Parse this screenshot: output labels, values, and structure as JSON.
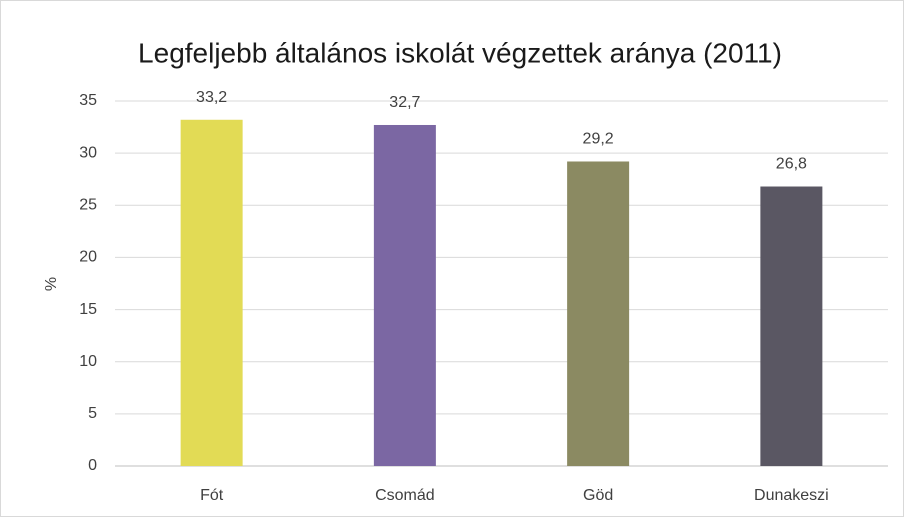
{
  "chart_data": {
    "type": "bar",
    "title": "Legfeljebb általános iskolát végzettek aránya (2011)",
    "y_label": "%",
    "categories": [
      "Fót",
      "Csomád",
      "Göd",
      "Dunakeszi"
    ],
    "values": [
      33.2,
      32.7,
      29.2,
      26.8
    ],
    "value_labels": [
      "33,2",
      "32,7",
      "29,2",
      "26,8"
    ],
    "colors": [
      "#e2db55",
      "#7b67a3",
      "#8b8a62",
      "#5a5763"
    ],
    "ylim": [
      0,
      35
    ],
    "yticks": [
      0,
      5,
      10,
      15,
      20,
      25,
      30,
      35
    ],
    "grid": true
  }
}
